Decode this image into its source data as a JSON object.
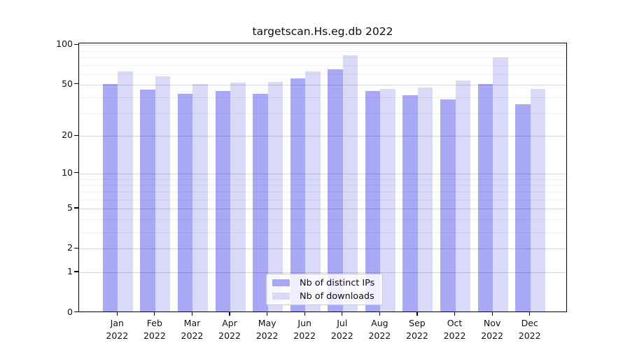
{
  "title": "targetscan.Hs.eg.db 2022",
  "chart_data": {
    "type": "bar",
    "title": "targetscan.Hs.eg.db 2022",
    "categories": [
      "Jan",
      "Feb",
      "Mar",
      "Apr",
      "May",
      "Jun",
      "Jul",
      "Aug",
      "Sep",
      "Oct",
      "Nov",
      "Dec"
    ],
    "year": "2022",
    "series": [
      {
        "name": "Nb of distinct IPs",
        "color": "#a8a8f5",
        "values": [
          50,
          45,
          42,
          44,
          42,
          55,
          65,
          44,
          41,
          38,
          50,
          35
        ]
      },
      {
        "name": "Nb of downloads",
        "color": "#d9d9f8",
        "values": [
          62,
          57,
          50,
          51,
          52,
          62,
          83,
          46,
          47,
          53,
          80,
          46
        ]
      }
    ],
    "xlabel": "",
    "ylabel": "",
    "yscale": "log1p",
    "ylim": [
      0,
      103
    ],
    "yticks": [
      0,
      1,
      2,
      5,
      10,
      20,
      50,
      100
    ],
    "minor_gridlines": [
      3,
      4,
      6,
      7,
      8,
      9,
      30,
      40,
      60,
      70,
      80,
      90
    ],
    "grid": "on",
    "legend_position": "lower center"
  },
  "legend": {
    "items": [
      {
        "label": "Nb of distinct IPs"
      },
      {
        "label": "Nb of downloads"
      }
    ]
  }
}
